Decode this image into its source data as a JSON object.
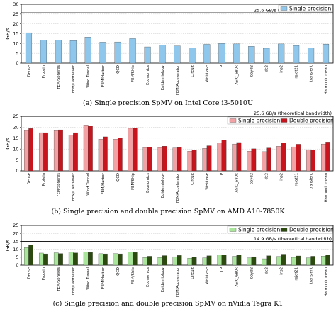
{
  "categories": [
    "Dense",
    "Protein",
    "FEM/Spheres",
    "FEM/Cantilever",
    "Wind Tunnel",
    "FEM/Harbor",
    "QCD",
    "FEM/Ship",
    "Economics",
    "Epidemiology",
    "FEM/Accelerator",
    "Circuit",
    "Webbase",
    "LP",
    "ASIC_680k",
    "boyd2",
    "dc2",
    "ins2",
    "rajat21",
    "transient",
    "Harmonic mean"
  ],
  "chart_data": [
    {
      "type": "bar",
      "caption": "(a) Single precision SpMV on Intel Core i3-5010U",
      "ylabel": "GB/s",
      "ylim": [
        0,
        30
      ],
      "yticks": [
        0,
        5,
        10,
        15,
        20,
        25,
        30
      ],
      "grid": true,
      "legend_position": "top-right",
      "reference": {
        "value": 25.6,
        "label": "25.6 GB/s (theoretical bandwidth)"
      },
      "series": [
        {
          "name": "Single precision",
          "color": "#8fc7ec",
          "values": [
            15.5,
            11.8,
            11.8,
            11.5,
            13.3,
            10.7,
            10.8,
            12.5,
            8.3,
            9.3,
            8.8,
            7.8,
            9.6,
            10.0,
            9.8,
            8.6,
            7.6,
            9.8,
            9.0,
            7.7,
            9.7
          ]
        }
      ]
    },
    {
      "type": "bar",
      "caption": "(b) Single precision and double precision SpMV on AMD A10-7850K",
      "ylabel": "GB/s",
      "ylim": [
        0,
        25
      ],
      "yticks": [
        0,
        5,
        10,
        15,
        20,
        25
      ],
      "grid": true,
      "legend_position": "top-right",
      "reference": {
        "value": 25.6,
        "label": "25.6 GB/s (theoretical bandwidth)"
      },
      "series": [
        {
          "name": "Single precision",
          "color": "#f2a2a4",
          "values": [
            18.5,
            17.5,
            18.4,
            16.5,
            21.0,
            14.5,
            14.5,
            19.5,
            10.7,
            10.7,
            10.5,
            9.0,
            10.3,
            12.8,
            12.3,
            9.0,
            8.8,
            11.3,
            11.0,
            9.5,
            12.3
          ]
        },
        {
          "name": "Double precision",
          "color": "#c8141c",
          "values": [
            19.4,
            17.5,
            18.8,
            17.5,
            20.5,
            15.6,
            15.2,
            19.5,
            10.8,
            11.3,
            10.7,
            9.5,
            11.5,
            14.0,
            13.0,
            10.1,
            10.5,
            12.8,
            12.2,
            9.5,
            13.2
          ]
        }
      ]
    },
    {
      "type": "bar",
      "caption": "(c) Single precision and double precision SpMV on nVidia Tegra K1",
      "ylabel": "GB/s",
      "ylim": [
        0,
        25
      ],
      "yticks": [
        0,
        5,
        10,
        15,
        20,
        25
      ],
      "grid": true,
      "legend_position": "top-right",
      "reference": {
        "value": 14.9,
        "label": "14.9 GB/s (theoretical bandwidth)"
      },
      "series": [
        {
          "name": "Single precision",
          "color": "#a9e69b",
          "values": [
            11.0,
            7.6,
            7.8,
            8.1,
            8.2,
            7.2,
            7.3,
            8.3,
            4.8,
            4.8,
            5.3,
            4.4,
            4.6,
            6.4,
            5.6,
            4.6,
            4.0,
            5.5,
            4.9,
            4.6,
            5.7
          ]
        },
        {
          "name": "Double precision",
          "color": "#2c4a0f",
          "values": [
            12.8,
            7.1,
            7.3,
            7.7,
            8.0,
            7.1,
            7.1,
            8.0,
            5.6,
            6.0,
            6.1,
            5.1,
            5.9,
            6.5,
            6.5,
            5.3,
            5.9,
            6.9,
            5.8,
            5.6,
            6.3
          ]
        }
      ]
    }
  ]
}
